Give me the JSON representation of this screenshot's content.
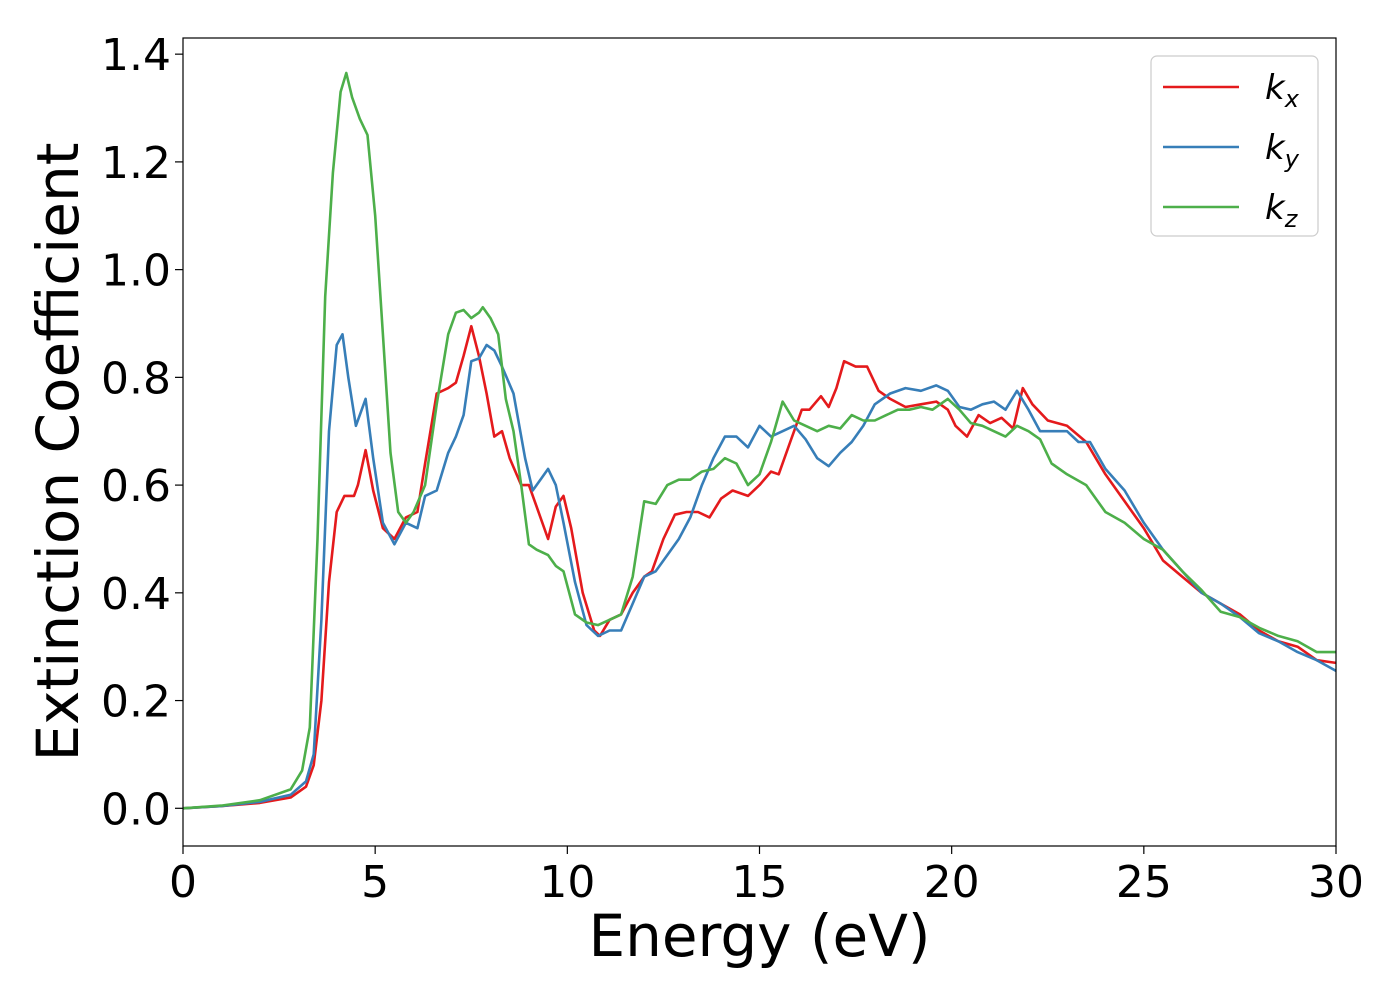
{
  "chart_data": {
    "type": "line",
    "title": "",
    "xlabel": "Energy (eV)",
    "ylabel": "Extinction Coefficient",
    "xlim": [
      0,
      30
    ],
    "ylim": [
      -0.07,
      1.43
    ],
    "xticks": [
      0,
      5,
      10,
      15,
      20,
      25,
      30
    ],
    "yticks": [
      0.0,
      0.2,
      0.4,
      0.6,
      0.8,
      1.0,
      1.2,
      1.4
    ],
    "grid": false,
    "legend_position": "top-right",
    "series": [
      {
        "name": "k",
        "subscript": "x",
        "color": "#e41a1c",
        "points": [
          [
            0,
            0
          ],
          [
            1,
            0.004
          ],
          [
            2,
            0.01
          ],
          [
            2.8,
            0.02
          ],
          [
            3.2,
            0.04
          ],
          [
            3.4,
            0.08
          ],
          [
            3.6,
            0.2
          ],
          [
            3.8,
            0.42
          ],
          [
            4.0,
            0.55
          ],
          [
            4.2,
            0.58
          ],
          [
            4.45,
            0.58
          ],
          [
            4.55,
            0.6
          ],
          [
            4.75,
            0.665
          ],
          [
            4.95,
            0.59
          ],
          [
            5.2,
            0.52
          ],
          [
            5.5,
            0.5
          ],
          [
            5.8,
            0.54
          ],
          [
            6.1,
            0.55
          ],
          [
            6.3,
            0.64
          ],
          [
            6.6,
            0.77
          ],
          [
            6.9,
            0.78
          ],
          [
            7.1,
            0.79
          ],
          [
            7.3,
            0.84
          ],
          [
            7.5,
            0.895
          ],
          [
            7.7,
            0.84
          ],
          [
            7.9,
            0.77
          ],
          [
            8.1,
            0.69
          ],
          [
            8.3,
            0.7
          ],
          [
            8.5,
            0.65
          ],
          [
            8.8,
            0.6
          ],
          [
            9.0,
            0.6
          ],
          [
            9.2,
            0.56
          ],
          [
            9.5,
            0.5
          ],
          [
            9.7,
            0.56
          ],
          [
            9.9,
            0.58
          ],
          [
            10.1,
            0.52
          ],
          [
            10.4,
            0.4
          ],
          [
            10.7,
            0.33
          ],
          [
            10.85,
            0.32
          ],
          [
            11.1,
            0.35
          ],
          [
            11.4,
            0.36
          ],
          [
            11.7,
            0.4
          ],
          [
            12.0,
            0.43
          ],
          [
            12.2,
            0.44
          ],
          [
            12.5,
            0.5
          ],
          [
            12.8,
            0.545
          ],
          [
            13.1,
            0.55
          ],
          [
            13.4,
            0.55
          ],
          [
            13.7,
            0.54
          ],
          [
            14.0,
            0.575
          ],
          [
            14.3,
            0.59
          ],
          [
            14.7,
            0.58
          ],
          [
            15.0,
            0.6
          ],
          [
            15.3,
            0.625
          ],
          [
            15.5,
            0.62
          ],
          [
            15.8,
            0.68
          ],
          [
            16.1,
            0.74
          ],
          [
            16.3,
            0.74
          ],
          [
            16.6,
            0.765
          ],
          [
            16.8,
            0.745
          ],
          [
            17.0,
            0.78
          ],
          [
            17.2,
            0.83
          ],
          [
            17.5,
            0.82
          ],
          [
            17.8,
            0.82
          ],
          [
            18.1,
            0.775
          ],
          [
            18.4,
            0.76
          ],
          [
            18.8,
            0.745
          ],
          [
            19.2,
            0.75
          ],
          [
            19.6,
            0.755
          ],
          [
            19.9,
            0.74
          ],
          [
            20.1,
            0.71
          ],
          [
            20.4,
            0.69
          ],
          [
            20.7,
            0.73
          ],
          [
            21.0,
            0.715
          ],
          [
            21.3,
            0.725
          ],
          [
            21.6,
            0.705
          ],
          [
            21.85,
            0.78
          ],
          [
            22.1,
            0.75
          ],
          [
            22.5,
            0.72
          ],
          [
            23.0,
            0.71
          ],
          [
            23.5,
            0.68
          ],
          [
            24.0,
            0.62
          ],
          [
            24.5,
            0.57
          ],
          [
            25.0,
            0.52
          ],
          [
            25.5,
            0.46
          ],
          [
            26.0,
            0.43
          ],
          [
            26.5,
            0.4
          ],
          [
            27.0,
            0.38
          ],
          [
            27.5,
            0.36
          ],
          [
            28.0,
            0.33
          ],
          [
            28.5,
            0.31
          ],
          [
            29.0,
            0.3
          ],
          [
            29.5,
            0.275
          ],
          [
            30,
            0.27
          ]
        ]
      },
      {
        "name": "k",
        "subscript": "y",
        "color": "#377eb8",
        "points": [
          [
            0,
            0
          ],
          [
            1,
            0.004
          ],
          [
            2,
            0.012
          ],
          [
            2.8,
            0.025
          ],
          [
            3.2,
            0.05
          ],
          [
            3.4,
            0.1
          ],
          [
            3.6,
            0.35
          ],
          [
            3.8,
            0.7
          ],
          [
            4.0,
            0.86
          ],
          [
            4.15,
            0.88
          ],
          [
            4.3,
            0.8
          ],
          [
            4.5,
            0.71
          ],
          [
            4.75,
            0.76
          ],
          [
            4.95,
            0.65
          ],
          [
            5.2,
            0.53
          ],
          [
            5.5,
            0.49
          ],
          [
            5.8,
            0.53
          ],
          [
            6.1,
            0.52
          ],
          [
            6.3,
            0.58
          ],
          [
            6.6,
            0.59
          ],
          [
            6.9,
            0.66
          ],
          [
            7.1,
            0.69
          ],
          [
            7.3,
            0.73
          ],
          [
            7.5,
            0.83
          ],
          [
            7.7,
            0.835
          ],
          [
            7.9,
            0.86
          ],
          [
            8.1,
            0.85
          ],
          [
            8.3,
            0.82
          ],
          [
            8.6,
            0.77
          ],
          [
            8.9,
            0.65
          ],
          [
            9.1,
            0.59
          ],
          [
            9.3,
            0.61
          ],
          [
            9.5,
            0.63
          ],
          [
            9.7,
            0.6
          ],
          [
            9.9,
            0.53
          ],
          [
            10.2,
            0.42
          ],
          [
            10.5,
            0.34
          ],
          [
            10.8,
            0.32
          ],
          [
            11.1,
            0.33
          ],
          [
            11.4,
            0.33
          ],
          [
            11.7,
            0.38
          ],
          [
            12.0,
            0.43
          ],
          [
            12.3,
            0.44
          ],
          [
            12.6,
            0.47
          ],
          [
            12.9,
            0.5
          ],
          [
            13.2,
            0.54
          ],
          [
            13.5,
            0.6
          ],
          [
            13.8,
            0.65
          ],
          [
            14.1,
            0.69
          ],
          [
            14.4,
            0.69
          ],
          [
            14.7,
            0.67
          ],
          [
            15.0,
            0.71
          ],
          [
            15.3,
            0.69
          ],
          [
            15.6,
            0.7
          ],
          [
            15.9,
            0.71
          ],
          [
            16.2,
            0.685
          ],
          [
            16.5,
            0.65
          ],
          [
            16.8,
            0.635
          ],
          [
            17.1,
            0.66
          ],
          [
            17.4,
            0.68
          ],
          [
            17.7,
            0.71
          ],
          [
            18.0,
            0.75
          ],
          [
            18.4,
            0.77
          ],
          [
            18.8,
            0.78
          ],
          [
            19.2,
            0.775
          ],
          [
            19.6,
            0.785
          ],
          [
            19.9,
            0.775
          ],
          [
            20.2,
            0.745
          ],
          [
            20.5,
            0.74
          ],
          [
            20.8,
            0.75
          ],
          [
            21.1,
            0.755
          ],
          [
            21.4,
            0.74
          ],
          [
            21.7,
            0.775
          ],
          [
            22.0,
            0.74
          ],
          [
            22.3,
            0.7
          ],
          [
            22.6,
            0.7
          ],
          [
            23.0,
            0.7
          ],
          [
            23.3,
            0.68
          ],
          [
            23.6,
            0.68
          ],
          [
            24.0,
            0.63
          ],
          [
            24.5,
            0.59
          ],
          [
            25.0,
            0.53
          ],
          [
            25.5,
            0.48
          ],
          [
            26.0,
            0.44
          ],
          [
            26.5,
            0.4
          ],
          [
            27.0,
            0.38
          ],
          [
            27.5,
            0.355
          ],
          [
            28.0,
            0.325
          ],
          [
            28.5,
            0.31
          ],
          [
            29.0,
            0.29
          ],
          [
            29.5,
            0.275
          ],
          [
            30,
            0.255
          ]
        ]
      },
      {
        "name": "k",
        "subscript": "z",
        "color": "#4daf4a",
        "points": [
          [
            0,
            0
          ],
          [
            1,
            0.005
          ],
          [
            2,
            0.015
          ],
          [
            2.8,
            0.035
          ],
          [
            3.1,
            0.07
          ],
          [
            3.3,
            0.15
          ],
          [
            3.5,
            0.5
          ],
          [
            3.7,
            0.95
          ],
          [
            3.9,
            1.18
          ],
          [
            4.1,
            1.33
          ],
          [
            4.25,
            1.365
          ],
          [
            4.4,
            1.32
          ],
          [
            4.6,
            1.28
          ],
          [
            4.8,
            1.25
          ],
          [
            5.0,
            1.1
          ],
          [
            5.2,
            0.88
          ],
          [
            5.4,
            0.66
          ],
          [
            5.6,
            0.55
          ],
          [
            5.8,
            0.53
          ],
          [
            6.0,
            0.55
          ],
          [
            6.3,
            0.6
          ],
          [
            6.6,
            0.75
          ],
          [
            6.9,
            0.88
          ],
          [
            7.1,
            0.92
          ],
          [
            7.3,
            0.925
          ],
          [
            7.5,
            0.91
          ],
          [
            7.7,
            0.92
          ],
          [
            7.8,
            0.93
          ],
          [
            8.0,
            0.91
          ],
          [
            8.2,
            0.88
          ],
          [
            8.4,
            0.76
          ],
          [
            8.6,
            0.7
          ],
          [
            8.8,
            0.6
          ],
          [
            9.0,
            0.49
          ],
          [
            9.2,
            0.48
          ],
          [
            9.5,
            0.47
          ],
          [
            9.7,
            0.45
          ],
          [
            9.9,
            0.44
          ],
          [
            10.2,
            0.36
          ],
          [
            10.5,
            0.345
          ],
          [
            10.8,
            0.34
          ],
          [
            11.1,
            0.35
          ],
          [
            11.4,
            0.36
          ],
          [
            11.7,
            0.43
          ],
          [
            12.0,
            0.57
          ],
          [
            12.3,
            0.565
          ],
          [
            12.6,
            0.6
          ],
          [
            12.9,
            0.61
          ],
          [
            13.2,
            0.61
          ],
          [
            13.5,
            0.625
          ],
          [
            13.8,
            0.63
          ],
          [
            14.1,
            0.65
          ],
          [
            14.4,
            0.64
          ],
          [
            14.7,
            0.6
          ],
          [
            15.0,
            0.62
          ],
          [
            15.3,
            0.68
          ],
          [
            15.6,
            0.755
          ],
          [
            15.9,
            0.72
          ],
          [
            16.2,
            0.71
          ],
          [
            16.5,
            0.7
          ],
          [
            16.8,
            0.71
          ],
          [
            17.1,
            0.705
          ],
          [
            17.4,
            0.73
          ],
          [
            17.7,
            0.72
          ],
          [
            18.0,
            0.72
          ],
          [
            18.3,
            0.73
          ],
          [
            18.6,
            0.74
          ],
          [
            18.9,
            0.74
          ],
          [
            19.2,
            0.745
          ],
          [
            19.5,
            0.74
          ],
          [
            19.9,
            0.76
          ],
          [
            20.2,
            0.74
          ],
          [
            20.5,
            0.715
          ],
          [
            20.8,
            0.71
          ],
          [
            21.1,
            0.7
          ],
          [
            21.4,
            0.69
          ],
          [
            21.7,
            0.71
          ],
          [
            22.0,
            0.7
          ],
          [
            22.3,
            0.685
          ],
          [
            22.6,
            0.64
          ],
          [
            23.0,
            0.62
          ],
          [
            23.5,
            0.6
          ],
          [
            24.0,
            0.55
          ],
          [
            24.5,
            0.53
          ],
          [
            25.0,
            0.5
          ],
          [
            25.5,
            0.48
          ],
          [
            26.0,
            0.44
          ],
          [
            26.5,
            0.405
          ],
          [
            27.0,
            0.365
          ],
          [
            27.5,
            0.355
          ],
          [
            28.0,
            0.335
          ],
          [
            28.5,
            0.32
          ],
          [
            29.0,
            0.31
          ],
          [
            29.5,
            0.29
          ],
          [
            30,
            0.29
          ]
        ]
      }
    ]
  }
}
